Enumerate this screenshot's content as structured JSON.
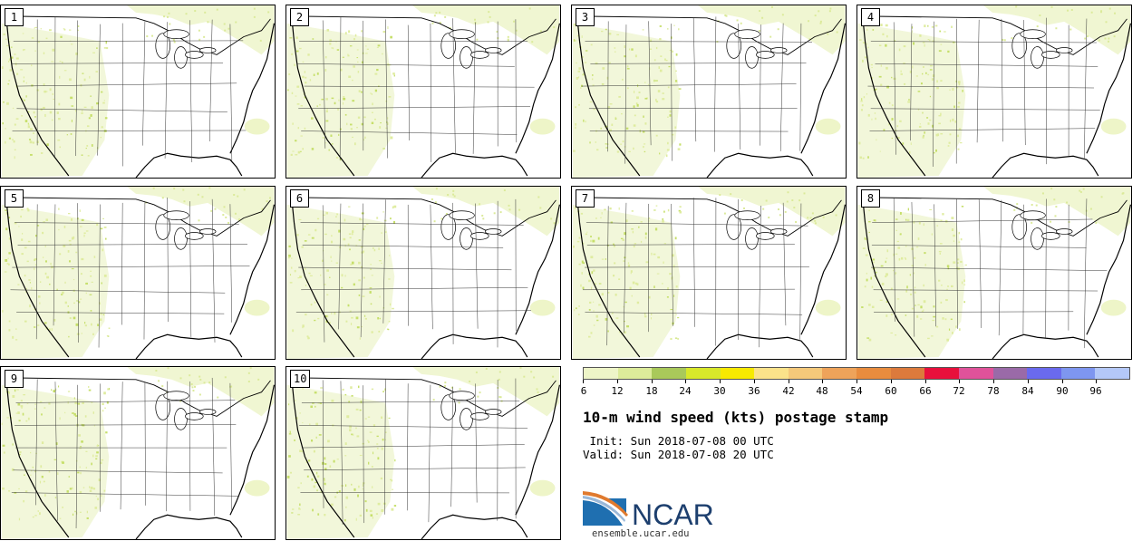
{
  "members": [
    "1",
    "2",
    "3",
    "4",
    "5",
    "6",
    "7",
    "8",
    "9",
    "10"
  ],
  "colorbar": {
    "ticks": [
      "6",
      "12",
      "18",
      "24",
      "30",
      "36",
      "42",
      "48",
      "54",
      "60",
      "66",
      "72",
      "78",
      "84",
      "90",
      "96"
    ],
    "colors": [
      "#eef5c8",
      "#dceb9a",
      "#a9c95a",
      "#d8e82a",
      "#f7ea00",
      "#fbe38a",
      "#f5c97a",
      "#eea35a",
      "#e88c3e",
      "#dc7a3c",
      "#e8103c",
      "#e0529a",
      "#9a6aa8",
      "#6a6aee",
      "#7e96f0",
      "#b4c8f8"
    ]
  },
  "title": "10-m wind speed (kts) postage stamp",
  "init_line": " Init: Sun 2018-07-08 00 UTC",
  "valid_line": "Valid: Sun 2018-07-08 20 UTC",
  "logo_text": "NCAR",
  "logo_url": "ensemble.ucar.edu"
}
